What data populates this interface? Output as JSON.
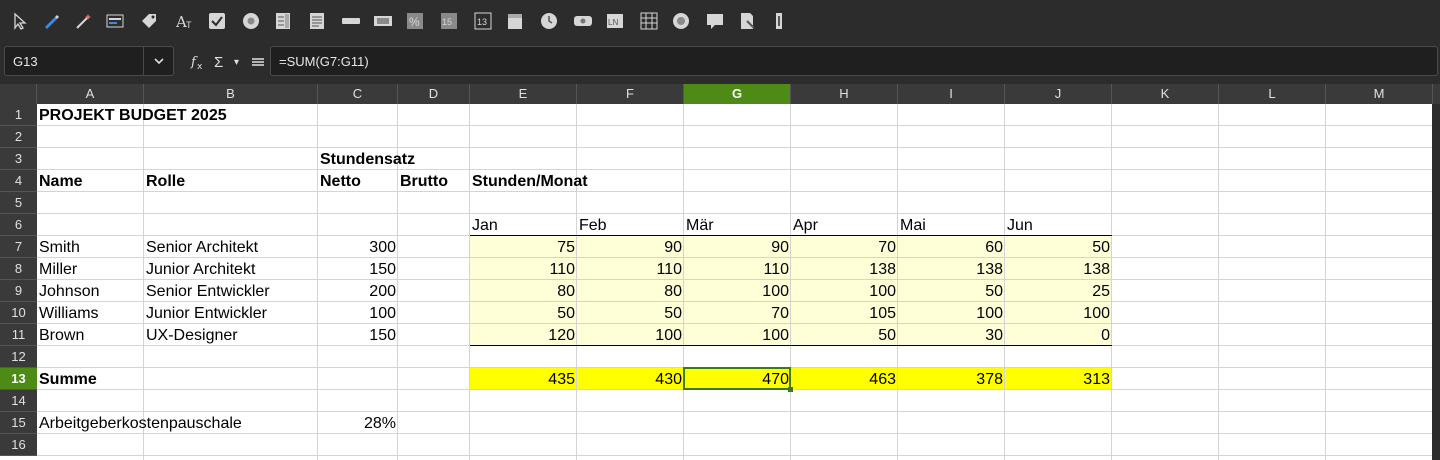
{
  "toolbar": {
    "icons": [
      "select-pointer-icon",
      "pen-icon",
      "magic-wand-icon",
      "form-field-icon",
      "tag-icon",
      "fontwork-icon",
      "checkbox-icon",
      "radio-button-icon",
      "list-box-icon",
      "text-box-icon",
      "push-button-icon",
      "image-button-icon",
      "percent-field-icon",
      "numeric-field-icon",
      "formatted-field-icon",
      "date-field-icon",
      "time-field-icon",
      "label-field-icon",
      "table-control-icon",
      "navigation-bar-icon",
      "comment-icon",
      "edit-cursor-icon",
      "scrollbar-icon",
      "spin-button-icon"
    ]
  },
  "formula_bar": {
    "cell_ref": "G13",
    "formula": "=SUM(G7:G11)"
  },
  "columns": [
    "A",
    "B",
    "C",
    "D",
    "E",
    "F",
    "G",
    "H",
    "I",
    "J",
    "K",
    "L",
    "M"
  ],
  "rows": [
    "1",
    "2",
    "3",
    "4",
    "5",
    "6",
    "7",
    "8",
    "9",
    "10",
    "11",
    "12",
    "13",
    "14",
    "15",
    "16"
  ],
  "sheet": {
    "title": "PROJEKT BUDGET 2025",
    "header_stundensatz": "Stundensatz",
    "header_name": "Name",
    "header_rolle": "Rolle",
    "header_netto": "Netto",
    "header_brutto": "Brutto",
    "header_stunden": "Stunden/Monat",
    "months": [
      "Jan",
      "Feb",
      "Mär",
      "Apr",
      "Mai",
      "Jun"
    ],
    "people": [
      {
        "name": "Smith",
        "role": "Senior Architekt",
        "rate": "300",
        "hours": [
          "75",
          "90",
          "90",
          "70",
          "60",
          "50"
        ]
      },
      {
        "name": "Miller",
        "role": "Junior Architekt",
        "rate": "150",
        "hours": [
          "110",
          "110",
          "110",
          "138",
          "138",
          "138"
        ]
      },
      {
        "name": "Johnson",
        "role": "Senior Entwickler",
        "rate": "200",
        "hours": [
          "80",
          "80",
          "100",
          "100",
          "50",
          "25"
        ]
      },
      {
        "name": "Williams",
        "role": "Junior Entwickler",
        "rate": "100",
        "hours": [
          "50",
          "50",
          "70",
          "105",
          "100",
          "100"
        ]
      },
      {
        "name": "Brown",
        "role": "UX-Designer",
        "rate": "150",
        "hours": [
          "120",
          "100",
          "100",
          "50",
          "30",
          "0"
        ]
      }
    ],
    "summe_label": "Summe",
    "sums": [
      "435",
      "430",
      "470",
      "463",
      "378",
      "313"
    ],
    "pauschale_label": "Arbeitgeberkostenpauschale",
    "pauschale_value": "28%"
  },
  "colors": {
    "selected_header": "#4d8a16",
    "light_fill": "#ffffd7",
    "sum_fill": "#ffff00"
  }
}
